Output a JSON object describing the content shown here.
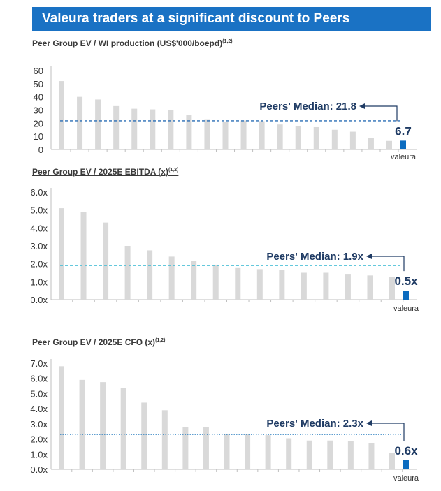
{
  "header": {
    "title": "Valeura traders at a significant discount to Peers"
  },
  "colors": {
    "banner": "#1a72c4",
    "peer_bar": "#d9d9d9",
    "valeura_bar": "#0b6bbf",
    "median_text": "#1f3b64",
    "median_line_1": "#2a6eb5",
    "median_line_2": "#4fc0d8",
    "median_line_3": "#2a7fc0"
  },
  "chart_data": [
    {
      "type": "bar",
      "title": "Peer Group EV / WI production (US$'000/boepd)",
      "title_sup": "(1,2)",
      "values": [
        52,
        40,
        38,
        33,
        31,
        30.5,
        30,
        26,
        22.5,
        21,
        22,
        21.5,
        19,
        18,
        17,
        15,
        13.5,
        9,
        6.5
      ],
      "valeura_value": 6.7,
      "valeura_label": "6.7",
      "valeura_name": "valeura",
      "median": 21.8,
      "median_label": "Peers' Median: 21.8",
      "ylim": [
        0,
        60
      ],
      "yticks": [
        "0",
        "10",
        "20",
        "30",
        "40",
        "50",
        "60"
      ],
      "median_style": "dashed"
    },
    {
      "type": "bar",
      "title": "Peer Group EV / 2025E EBITDA (x)",
      "title_sup": "(1,2)",
      "values": [
        5.1,
        4.9,
        4.3,
        3.0,
        2.75,
        2.4,
        2.15,
        1.95,
        1.8,
        1.7,
        1.65,
        1.5,
        1.5,
        1.4,
        1.35,
        1.25
      ],
      "valeura_value": 0.5,
      "valeura_label": "0.5x",
      "valeura_name": "valeura",
      "median": 1.9,
      "median_label": "Peers' Median: 1.9x",
      "ylim": [
        0,
        6
      ],
      "yticks": [
        "0.0x",
        "1.0x",
        "2.0x",
        "3.0x",
        "4.0x",
        "5.0x",
        "6.0x"
      ],
      "median_style": "dashed"
    },
    {
      "type": "bar",
      "title": "Peer Group EV / 2025E CFO (x)",
      "title_sup": "(1,2)",
      "values": [
        6.8,
        5.9,
        5.75,
        5.35,
        4.4,
        3.9,
        2.8,
        2.8,
        2.35,
        2.3,
        2.25,
        2.05,
        1.9,
        1.9,
        1.85,
        1.75,
        1.1
      ],
      "valeura_value": 0.6,
      "valeura_label": "0.6x",
      "valeura_name": "valeura",
      "median": 2.3,
      "median_label": "Peers' Median: 2.3x",
      "ylim": [
        0,
        7
      ],
      "yticks": [
        "0.0x",
        "1.0x",
        "2.0x",
        "3.0x",
        "4.0x",
        "5.0x",
        "6.0x",
        "7.0x"
      ],
      "median_style": "dotted"
    }
  ]
}
